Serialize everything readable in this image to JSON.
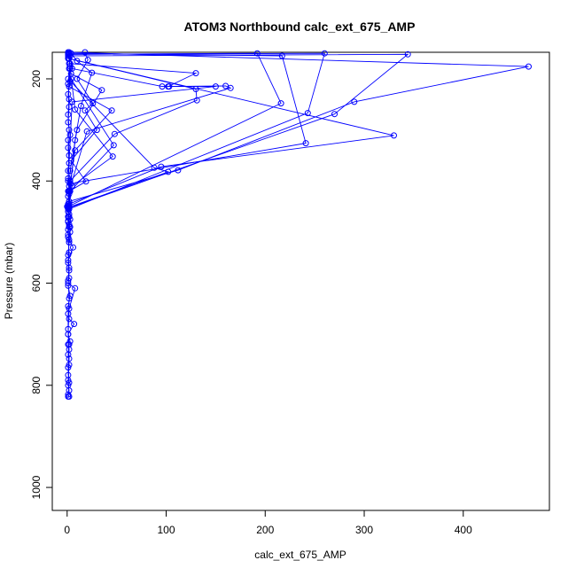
{
  "chart_data": {
    "type": "line",
    "title": "ATOM3 Northbound calc_ext_675_AMP",
    "xlabel": "calc_ext_675_AMP",
    "ylabel": "Pressure (mbar)",
    "xlim": [
      -15,
      487
    ],
    "ylim": [
      1045,
      148
    ],
    "x_ticks": [
      0,
      100,
      200,
      300,
      400
    ],
    "y_ticks": [
      200,
      400,
      600,
      800,
      1000
    ],
    "color": "#0000ff",
    "marker": "open-circle",
    "grid": false,
    "legend": "none",
    "series": [
      {
        "x": [
          1,
          3,
          2,
          45,
          8,
          2,
          1
        ],
        "y": [
          150,
          175,
          215,
          262,
          340,
          420,
          460
        ]
      },
      {
        "x": [
          2,
          4,
          35,
          10,
          3,
          1
        ],
        "y": [
          160,
          190,
          222,
          300,
          380,
          450
        ]
      },
      {
        "x": [
          3,
          5,
          96,
          103,
          160,
          165,
          20,
          2
        ],
        "y": [
          155,
          180,
          215,
          215,
          214,
          218,
          303,
          420
        ]
      },
      {
        "x": [
          2,
          130,
          102,
          150,
          5,
          1
        ],
        "y": [
          170,
          189,
          215,
          215,
          245,
          400
        ]
      },
      {
        "x": [
          1,
          130,
          131,
          48,
          3,
          1
        ],
        "y": [
          160,
          220,
          242,
          308,
          400,
          450
        ]
      },
      {
        "x": [
          2,
          4,
          47,
          3,
          1
        ],
        "y": [
          150,
          200,
          330,
          420,
          455
        ]
      },
      {
        "x": [
          1,
          3,
          8,
          46,
          5,
          1
        ],
        "y": [
          148,
          180,
          260,
          352,
          410,
          450
        ]
      },
      {
        "x": [
          2,
          217,
          241,
          3,
          1
        ],
        "y": [
          150,
          155,
          326,
          405,
          450
        ]
      },
      {
        "x": [
          1,
          192,
          216,
          1
        ],
        "y": [
          152,
          150,
          248,
          450
        ]
      },
      {
        "x": [
          2,
          260,
          243,
          2
        ],
        "y": [
          152,
          150,
          267,
          455
        ]
      },
      {
        "x": [
          1,
          344,
          270,
          1
        ],
        "y": [
          155,
          152,
          269,
          453
        ]
      },
      {
        "x": [
          2,
          466,
          290,
          112,
          2
        ],
        "y": [
          148,
          176,
          245,
          379,
          440
        ]
      },
      {
        "x": [
          1,
          330,
          95,
          2
        ],
        "y": [
          160,
          311,
          372,
          445
        ]
      },
      {
        "x": [
          1,
          88,
          102,
          1
        ],
        "y": [
          200,
          374,
          382,
          452
        ]
      },
      {
        "x": [
          18,
          21,
          10,
          26,
          18,
          30,
          4,
          19,
          2
        ],
        "y": [
          148,
          163,
          200,
          248,
          262,
          300,
          360,
          401,
          420
        ]
      },
      {
        "x": [
          4,
          10,
          25,
          14,
          8,
          3,
          2
        ],
        "y": [
          150,
          165,
          188,
          253,
          320,
          420,
          470
        ]
      },
      {
        "x": [
          1,
          2,
          1,
          3,
          1,
          2,
          1,
          2,
          1,
          8,
          2,
          1,
          3,
          1,
          2,
          1
        ],
        "y": [
          420,
          450,
          480,
          500,
          510,
          540,
          560,
          590,
          600,
          610,
          650,
          700,
          714,
          720,
          748,
          780
        ]
      },
      {
        "x": [
          2,
          1,
          3,
          2,
          1,
          2,
          1,
          2,
          1,
          1,
          2,
          1,
          2,
          1,
          1,
          2,
          1,
          2
        ],
        "y": [
          440,
          470,
          490,
          520,
          545,
          570,
          595,
          630,
          660,
          690,
          720,
          740,
          760,
          790,
          800,
          810,
          818,
          822
        ]
      },
      {
        "x": [
          0,
          1,
          3,
          1,
          2,
          6,
          1,
          2,
          1,
          3,
          1,
          2,
          7,
          1,
          2,
          1,
          2,
          1
        ],
        "y": [
          450,
          460,
          475,
          495,
          515,
          530,
          555,
          575,
          605,
          625,
          645,
          670,
          680,
          700,
          730,
          765,
          795,
          822
        ]
      },
      {
        "x": [
          3,
          1,
          2,
          1,
          2,
          1,
          2,
          1,
          2,
          1,
          2,
          1,
          2,
          1,
          2
        ],
        "y": [
          170,
          210,
          240,
          270,
          300,
          320,
          350,
          380,
          410,
          430,
          455,
          470,
          485,
          505,
          520
        ]
      },
      {
        "x": [
          2,
          3,
          1,
          2,
          1,
          3,
          1,
          2,
          1,
          2,
          1,
          2,
          1,
          2
        ],
        "y": [
          180,
          205,
          230,
          255,
          285,
          310,
          335,
          365,
          395,
          425,
          445,
          465,
          478,
          490
        ]
      }
    ]
  }
}
